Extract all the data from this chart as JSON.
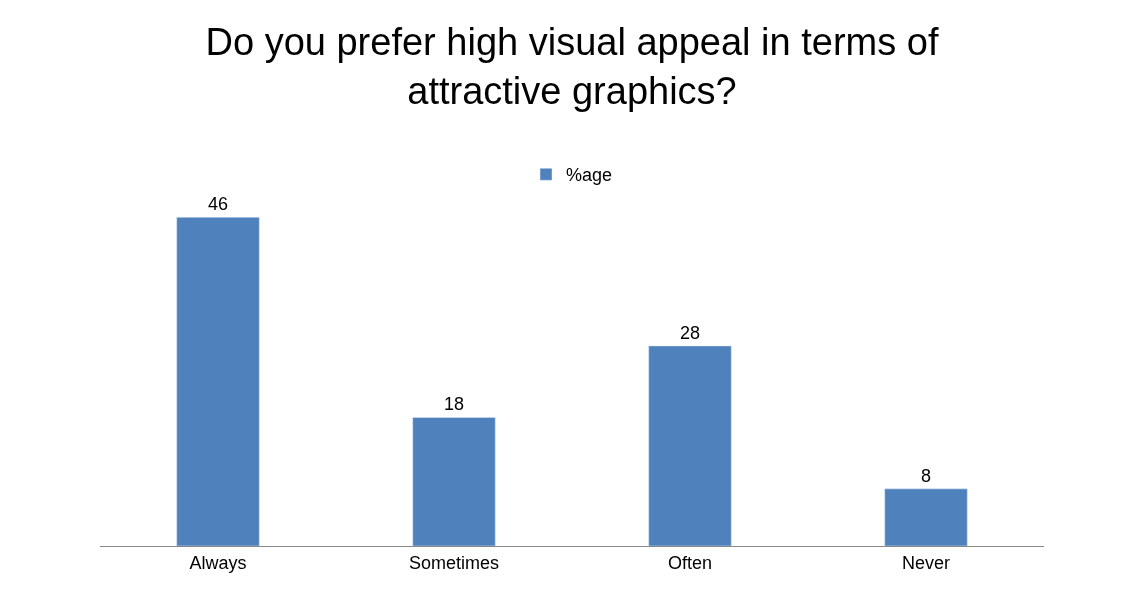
{
  "chart_data": {
    "type": "bar",
    "title": "Do you prefer high visual appeal in terms of attractive graphics?",
    "categories": [
      "Always",
      "Sometimes",
      "Often",
      "Never"
    ],
    "series": [
      {
        "name": "%age",
        "color": "#4f81bd",
        "values": [
          46,
          18,
          28,
          8
        ]
      }
    ],
    "data_labels": true,
    "legend": "top",
    "tick_labels": "x"
  }
}
